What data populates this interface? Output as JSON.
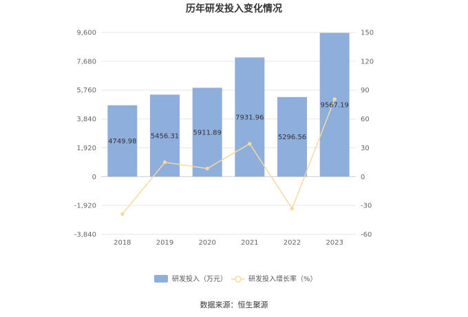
{
  "chart_data": {
    "type": "bar",
    "title": "历年研发投入变化情况",
    "categories": [
      "2018",
      "2019",
      "2020",
      "2021",
      "2022",
      "2023"
    ],
    "series": [
      {
        "name": "研发投入（万元）",
        "type": "bar",
        "axis": "left",
        "color": "#8eaedb",
        "values": [
          4749.98,
          5456.31,
          5911.89,
          7931.96,
          5296.56,
          9567.19
        ],
        "labels": [
          "4749.98",
          "5456.31",
          "5911.89",
          "7931.96",
          "5296.56",
          "9567.19"
        ]
      },
      {
        "name": "研发投入增长率（%）",
        "type": "line",
        "axis": "right",
        "color": "#f7d9a0",
        "values": [
          -39,
          14.9,
          8.4,
          34.2,
          -33.2,
          80.6
        ]
      }
    ],
    "y_left": {
      "min": -3840,
      "max": 9600,
      "ticks": [
        9600,
        7680,
        5760,
        3840,
        1920,
        0,
        -1920,
        -3840
      ],
      "tick_labels": [
        "9,600",
        "7,680",
        "5,760",
        "3,840",
        "1,920",
        "0",
        "-1,920",
        "-3,840"
      ]
    },
    "y_right": {
      "min": -60,
      "max": 150,
      "ticks": [
        150,
        120,
        90,
        60,
        30,
        0,
        -30,
        -60
      ],
      "tick_labels": [
        "150",
        "120",
        "90",
        "60",
        "30",
        "0",
        "-30",
        "-60"
      ]
    },
    "grid": true,
    "legend_position": "bottom"
  },
  "source_text": "数据来源：恒生聚源"
}
